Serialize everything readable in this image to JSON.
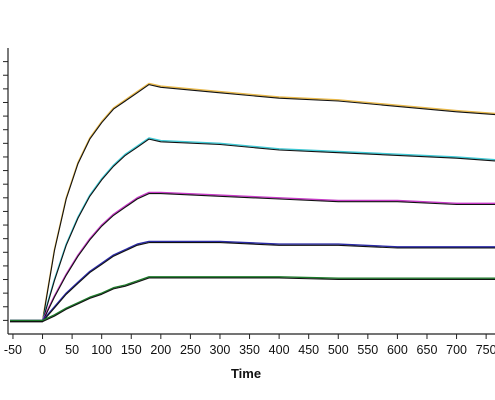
{
  "chart_data": {
    "type": "line",
    "title": "",
    "xlabel": "Time",
    "ylabel": "",
    "xlim": [
      -55,
      765
    ],
    "ylim": [
      -0.05,
      1.0
    ],
    "x_ticks": [
      -50,
      0,
      50,
      100,
      150,
      200,
      250,
      300,
      350,
      400,
      450,
      500,
      550,
      600,
      650,
      700,
      750
    ],
    "x_tick_labels": [
      "-50",
      "0",
      "50",
      "100",
      "150",
      "200",
      "250",
      "300",
      "350",
      "400",
      "450",
      "500",
      "550",
      "600",
      "650",
      "700",
      "750"
    ],
    "y_ticks": [
      0,
      0.05,
      0.1,
      0.15,
      0.2,
      0.25,
      0.3,
      0.35,
      0.4,
      0.45,
      0.5,
      0.55,
      0.6,
      0.65,
      0.7,
      0.75,
      0.8,
      0.85,
      0.9,
      0.95
    ],
    "y_tick_labels_visible": false,
    "grid": false,
    "legend": "none",
    "association_end": 180,
    "series": [
      {
        "color": "#e8b84a",
        "fit_color": "#111111",
        "x": [
          -55,
          0,
          20,
          40,
          60,
          80,
          100,
          120,
          140,
          160,
          180,
          200,
          300,
          400,
          500,
          600,
          700,
          765
        ],
        "y": [
          0,
          0,
          0.26,
          0.45,
          0.58,
          0.67,
          0.73,
          0.78,
          0.81,
          0.84,
          0.87,
          0.86,
          0.84,
          0.82,
          0.81,
          0.79,
          0.77,
          0.76
        ]
      },
      {
        "color": "#3fc8d4",
        "fit_color": "#111111",
        "x": [
          -55,
          0,
          20,
          40,
          60,
          80,
          100,
          120,
          140,
          160,
          180,
          200,
          300,
          400,
          500,
          600,
          700,
          765
        ],
        "y": [
          0,
          0,
          0.15,
          0.28,
          0.38,
          0.46,
          0.52,
          0.57,
          0.61,
          0.64,
          0.67,
          0.66,
          0.65,
          0.63,
          0.62,
          0.61,
          0.6,
          0.59
        ]
      },
      {
        "color": "#c63ac6",
        "fit_color": "#111111",
        "x": [
          -55,
          0,
          20,
          40,
          60,
          80,
          100,
          120,
          140,
          160,
          180,
          200,
          300,
          400,
          500,
          600,
          700,
          765
        ],
        "y": [
          0,
          0,
          0.09,
          0.17,
          0.24,
          0.3,
          0.35,
          0.39,
          0.42,
          0.45,
          0.47,
          0.47,
          0.46,
          0.45,
          0.44,
          0.44,
          0.43,
          0.43
        ]
      },
      {
        "color": "#2a2aa6",
        "fit_color": "#111111",
        "x": [
          -55,
          0,
          20,
          40,
          60,
          80,
          100,
          120,
          140,
          160,
          180,
          200,
          300,
          400,
          500,
          600,
          700,
          765
        ],
        "y": [
          0,
          0,
          0.05,
          0.1,
          0.14,
          0.18,
          0.21,
          0.24,
          0.26,
          0.28,
          0.29,
          0.29,
          0.29,
          0.28,
          0.28,
          0.27,
          0.27,
          0.27
        ]
      },
      {
        "color": "#1c7a2a",
        "fit_color": "#111111",
        "x": [
          -55,
          0,
          20,
          40,
          60,
          80,
          100,
          120,
          140,
          160,
          180,
          200,
          300,
          400,
          500,
          600,
          700,
          765
        ],
        "y": [
          0,
          0,
          0.02,
          0.045,
          0.065,
          0.085,
          0.1,
          0.12,
          0.13,
          0.145,
          0.16,
          0.16,
          0.16,
          0.16,
          0.155,
          0.155,
          0.155,
          0.155
        ]
      }
    ]
  }
}
